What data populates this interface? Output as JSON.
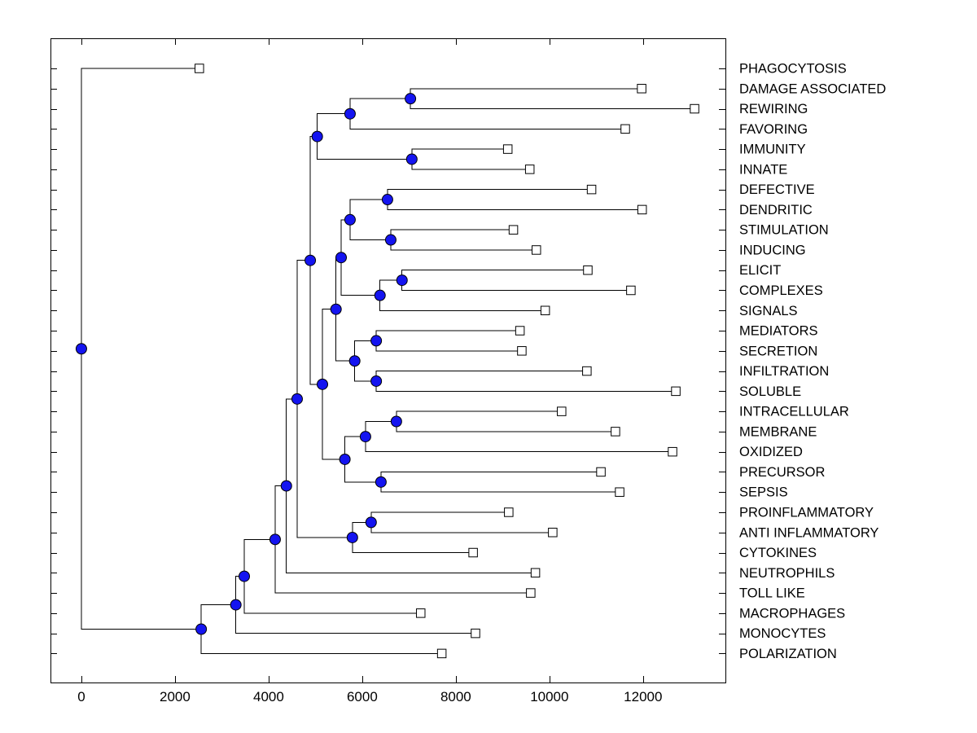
{
  "chart_data": {
    "type": "dendrogram",
    "orientation": "left_to_right",
    "title": "",
    "x_axis": {
      "ticks": [
        0,
        2000,
        4000,
        6000,
        8000,
        10000,
        12000
      ],
      "xlim": [
        -660,
        13760
      ],
      "label": ""
    },
    "y_axis": {
      "tick_per_leaf": true,
      "label": ""
    },
    "grid": false,
    "legend": null,
    "leaves": [
      {
        "id": "L0",
        "label": "PHAGOCYTOSIS",
        "value": 2520
      },
      {
        "id": "L1",
        "label": "DAMAGE ASSOCIATED",
        "value": 11970
      },
      {
        "id": "L2",
        "label": "REWIRING",
        "value": 13100
      },
      {
        "id": "L3",
        "label": "FAVORING",
        "value": 11620
      },
      {
        "id": "L4",
        "label": "IMMUNITY",
        "value": 9110
      },
      {
        "id": "L5",
        "label": "INNATE",
        "value": 9580
      },
      {
        "id": "L6",
        "label": "DEFECTIVE",
        "value": 10900
      },
      {
        "id": "L7",
        "label": "DENDRITIC",
        "value": 11980
      },
      {
        "id": "L8",
        "label": "STIMULATION",
        "value": 9230
      },
      {
        "id": "L9",
        "label": "INDUCING",
        "value": 9720
      },
      {
        "id": "L10",
        "label": "ELICIT",
        "value": 10820
      },
      {
        "id": "L11",
        "label": "COMPLEXES",
        "value": 11740
      },
      {
        "id": "L12",
        "label": "SIGNALS",
        "value": 9910
      },
      {
        "id": "L13",
        "label": "MEDIATORS",
        "value": 9370
      },
      {
        "id": "L14",
        "label": "SECRETION",
        "value": 9410
      },
      {
        "id": "L15",
        "label": "INFILTRATION",
        "value": 10800
      },
      {
        "id": "L16",
        "label": "SOLUBLE",
        "value": 12700
      },
      {
        "id": "L17",
        "label": "INTRACELLULAR",
        "value": 10260
      },
      {
        "id": "L18",
        "label": "MEMBRANE",
        "value": 11410
      },
      {
        "id": "L19",
        "label": "OXIDIZED",
        "value": 12630
      },
      {
        "id": "L20",
        "label": "PRECURSOR",
        "value": 11100
      },
      {
        "id": "L21",
        "label": "SEPSIS",
        "value": 11500
      },
      {
        "id": "L22",
        "label": "PROINFLAMMATORY",
        "value": 9130
      },
      {
        "id": "L23",
        "label": "ANTI INFLAMMATORY",
        "value": 10070
      },
      {
        "id": "L24",
        "label": "CYTOKINES",
        "value": 8370
      },
      {
        "id": "L25",
        "label": "NEUTROPHILS",
        "value": 9700
      },
      {
        "id": "L26",
        "label": "TOLL LIKE",
        "value": 9600
      },
      {
        "id": "L27",
        "label": "MACROPHAGES",
        "value": 7250
      },
      {
        "id": "L28",
        "label": "MONOCYTES",
        "value": 8420
      },
      {
        "id": "L29",
        "label": "POLARIZATION",
        "value": 7700
      }
    ],
    "internal_nodes": [
      {
        "id": "N1",
        "children": [
          "L1",
          "L2"
        ],
        "value": 7030
      },
      {
        "id": "N2",
        "children": [
          "N1",
          "L3"
        ],
        "value": 5740
      },
      {
        "id": "N3",
        "children": [
          "L4",
          "L5"
        ],
        "value": 7060
      },
      {
        "id": "N4",
        "children": [
          "N2",
          "N3"
        ],
        "value": 5040
      },
      {
        "id": "N5",
        "children": [
          "L6",
          "L7"
        ],
        "value": 6540
      },
      {
        "id": "N6",
        "children": [
          "L8",
          "L9"
        ],
        "value": 6610
      },
      {
        "id": "N7",
        "children": [
          "N5",
          "N6"
        ],
        "value": 5740
      },
      {
        "id": "N8",
        "children": [
          "L10",
          "L11"
        ],
        "value": 6850
      },
      {
        "id": "N9",
        "children": [
          "N8",
          "L12"
        ],
        "value": 6380
      },
      {
        "id": "N10",
        "children": [
          "N7",
          "N9"
        ],
        "value": 5550
      },
      {
        "id": "N11",
        "children": [
          "L13",
          "L14"
        ],
        "value": 6300
      },
      {
        "id": "N12",
        "children": [
          "L15",
          "L16"
        ],
        "value": 6300
      },
      {
        "id": "N13",
        "children": [
          "N11",
          "N12"
        ],
        "value": 5840
      },
      {
        "id": "N14",
        "children": [
          "N10",
          "N13"
        ],
        "value": 5440
      },
      {
        "id": "N15",
        "children": [
          "L17",
          "L18"
        ],
        "value": 6730
      },
      {
        "id": "N16",
        "children": [
          "N15",
          "L19"
        ],
        "value": 6070
      },
      {
        "id": "N17",
        "children": [
          "L20",
          "L21"
        ],
        "value": 6400
      },
      {
        "id": "N18",
        "children": [
          "N16",
          "N17"
        ],
        "value": 5630
      },
      {
        "id": "N19",
        "children": [
          "N14",
          "N18"
        ],
        "value": 5150
      },
      {
        "id": "N20",
        "children": [
          "N4",
          "N19"
        ],
        "value": 4890
      },
      {
        "id": "N21",
        "children": [
          "L22",
          "L23"
        ],
        "value": 6190
      },
      {
        "id": "N22",
        "children": [
          "N21",
          "L24"
        ],
        "value": 5790
      },
      {
        "id": "N23",
        "children": [
          "N20",
          "N22"
        ],
        "value": 4610
      },
      {
        "id": "N24",
        "children": [
          "N23",
          "L25"
        ],
        "value": 4380
      },
      {
        "id": "N25",
        "children": [
          "N24",
          "L26"
        ],
        "value": 4140
      },
      {
        "id": "N26",
        "children": [
          "N25",
          "L27"
        ],
        "value": 3480
      },
      {
        "id": "N27",
        "children": [
          "N26",
          "L28"
        ],
        "value": 3300
      },
      {
        "id": "N28",
        "children": [
          "N27",
          "L29"
        ],
        "value": 2560
      },
      {
        "id": "N29",
        "children": [
          "L0",
          "N28"
        ],
        "value": 0
      }
    ],
    "styles": {
      "line_color": "#000000",
      "branch_dot_fill": "#1414f0",
      "branch_dot_edge": "#000000",
      "leaf_marker_fill": "#ffffff",
      "leaf_marker_edge": "#000000",
      "text_color": "#000000",
      "background": "#ffffff"
    }
  }
}
